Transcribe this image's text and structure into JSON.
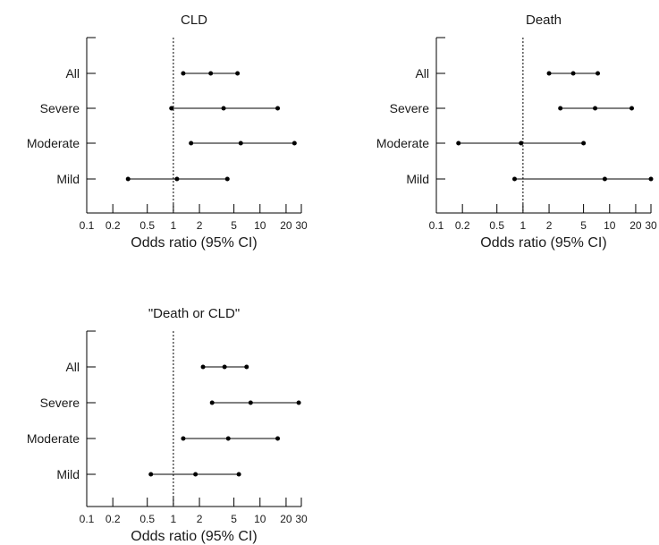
{
  "chart_data": [
    {
      "type": "forest",
      "title": "CLD",
      "xlabel": "Odds ratio (95% CI)",
      "x_scale": "log",
      "xlim": [
        0.1,
        30
      ],
      "x_ticks": [
        0.1,
        0.2,
        0.5,
        1,
        2,
        5,
        10,
        20,
        30
      ],
      "x_tick_labels": [
        "0.1",
        "0.2",
        "0.5",
        "1",
        "2",
        "5",
        "10",
        "20",
        "30"
      ],
      "reference_line": 1,
      "categories": [
        "All",
        "Severe",
        "Moderate",
        "Mild"
      ],
      "values": [
        {
          "category": "All",
          "lower": 1.3,
          "estimate": 2.7,
          "upper": 5.5
        },
        {
          "category": "Severe",
          "lower": 0.95,
          "estimate": 3.8,
          "upper": 16
        },
        {
          "category": "Moderate",
          "lower": 1.6,
          "estimate": 6.0,
          "upper": 25
        },
        {
          "category": "Mild",
          "lower": 0.3,
          "estimate": 1.1,
          "upper": 4.2
        }
      ]
    },
    {
      "type": "forest",
      "title": "Death",
      "xlabel": "Odds ratio (95% CI)",
      "x_scale": "log",
      "xlim": [
        0.1,
        30
      ],
      "x_ticks": [
        0.1,
        0.2,
        0.5,
        1,
        2,
        5,
        10,
        20,
        30
      ],
      "x_tick_labels": [
        "0.1",
        "0.2",
        "0.5",
        "1",
        "2",
        "5",
        "10",
        "20",
        "30"
      ],
      "reference_line": 1,
      "categories": [
        "All",
        "Severe",
        "Moderate",
        "Mild"
      ],
      "values": [
        {
          "category": "All",
          "lower": 2.0,
          "estimate": 3.8,
          "upper": 7.3
        },
        {
          "category": "Severe",
          "lower": 2.7,
          "estimate": 6.8,
          "upper": 18
        },
        {
          "category": "Moderate",
          "lower": 0.18,
          "estimate": 0.95,
          "upper": 5.0
        },
        {
          "category": "Mild",
          "lower": 0.8,
          "estimate": 8.8,
          "upper": 30
        }
      ]
    },
    {
      "type": "forest",
      "title": "\"Death or CLD\"",
      "xlabel": "Odds ratio (95% CI)",
      "x_scale": "log",
      "xlim": [
        0.1,
        30
      ],
      "x_ticks": [
        0.1,
        0.2,
        0.5,
        1,
        2,
        5,
        10,
        20,
        30
      ],
      "x_tick_labels": [
        "0.1",
        "0.2",
        "0.5",
        "1",
        "2",
        "5",
        "10",
        "20",
        "30"
      ],
      "reference_line": 1,
      "categories": [
        "All",
        "Severe",
        "Moderate",
        "Mild"
      ],
      "values": [
        {
          "category": "All",
          "lower": 2.2,
          "estimate": 3.9,
          "upper": 7.0
        },
        {
          "category": "Severe",
          "lower": 2.8,
          "estimate": 7.8,
          "upper": 28
        },
        {
          "category": "Moderate",
          "lower": 1.3,
          "estimate": 4.3,
          "upper": 16
        },
        {
          "category": "Mild",
          "lower": 0.55,
          "estimate": 1.8,
          "upper": 5.7
        }
      ]
    }
  ]
}
